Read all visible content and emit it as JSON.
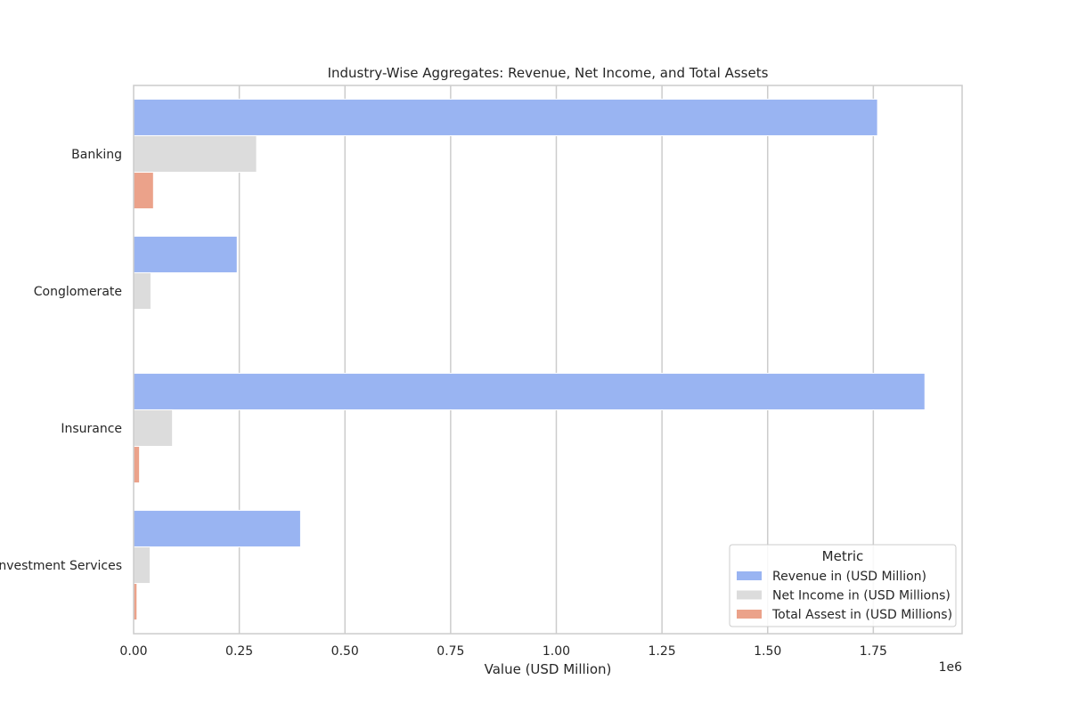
{
  "chart_data": {
    "type": "bar",
    "orientation": "horizontal",
    "title": "Industry-Wise Aggregates: Revenue, Net Income, and Total Assets",
    "xlabel": "Value (USD Million)",
    "ylabel": "",
    "offset_text": "1e6",
    "xlim": [
      0,
      1960000
    ],
    "xticks": [
      0,
      250000,
      500000,
      750000,
      1000000,
      1250000,
      1500000,
      1750000
    ],
    "xtick_labels": [
      "0.00",
      "0.25",
      "0.50",
      "0.75",
      "1.00",
      "1.25",
      "1.50",
      "1.75"
    ],
    "categories": [
      "Banking",
      "Conglomerate",
      "Insurance",
      "Investment Services"
    ],
    "series": [
      {
        "name": "Revenue in (USD Million)",
        "color": "#99b4f2",
        "values": [
          1760000,
          245000,
          1872000,
          395000
        ]
      },
      {
        "name": "Net Income in (USD Millions)",
        "color": "#dcdcdc",
        "values": [
          291000,
          41000,
          92000,
          39000
        ]
      },
      {
        "name": "Total Assest in (USD Millions)",
        "color": "#eba28a",
        "values": [
          47000,
          0,
          14000,
          8000
        ]
      }
    ],
    "grid": "vertical",
    "legend": {
      "title": "Metric",
      "placement": "lower-right"
    }
  }
}
